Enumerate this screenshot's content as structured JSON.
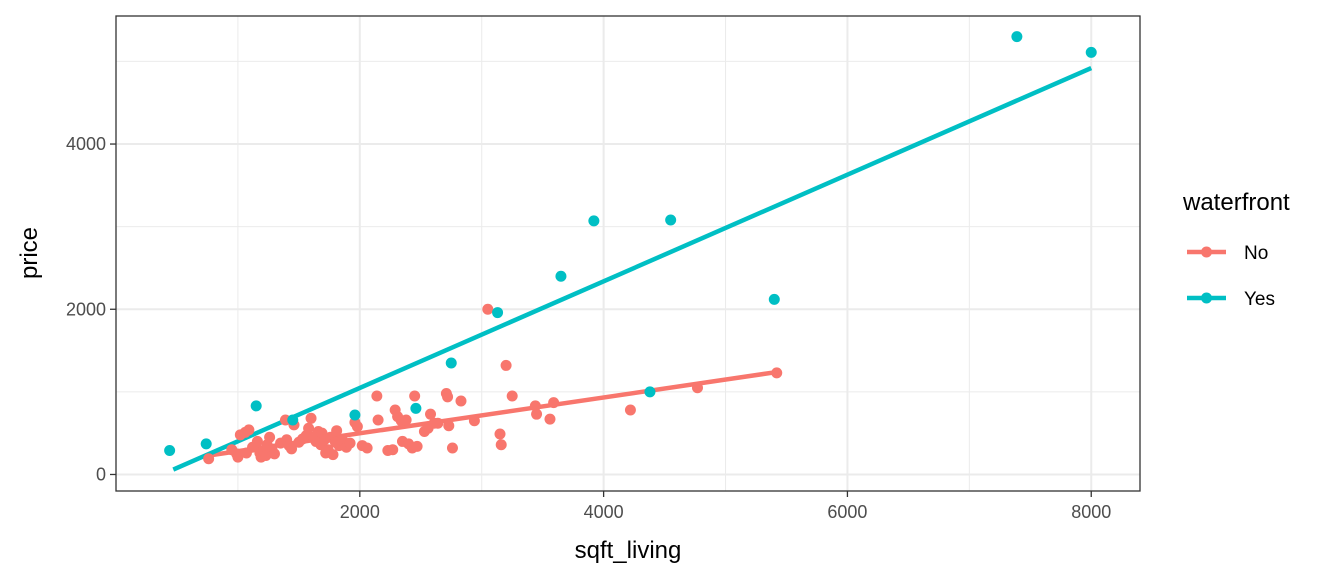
{
  "chart_data": {
    "type": "scatter",
    "xlabel": "sqft_living",
    "ylabel": "price",
    "xlim": [
      0,
      8400
    ],
    "ylim": [
      -200,
      5550
    ],
    "x_ticks": [
      2000,
      4000,
      6000,
      8000
    ],
    "y_ticks": [
      0,
      2000,
      4000
    ],
    "x_tick_labels": [
      "2000",
      "4000",
      "6000",
      "8000"
    ],
    "y_tick_labels": [
      "0",
      "2000",
      "4000"
    ],
    "grid": true,
    "legend": {
      "title": "waterfront",
      "position": "right"
    },
    "series": [
      {
        "name": "No",
        "color": "#F8766D",
        "points": [
          [
            760,
            190
          ],
          [
            950,
            300
          ],
          [
            990,
            250
          ],
          [
            1000,
            210
          ],
          [
            1020,
            480
          ],
          [
            1060,
            510
          ],
          [
            1070,
            260
          ],
          [
            1090,
            540
          ],
          [
            1120,
            330
          ],
          [
            1160,
            400
          ],
          [
            1180,
            260
          ],
          [
            1190,
            210
          ],
          [
            1210,
            290
          ],
          [
            1230,
            230
          ],
          [
            1240,
            360
          ],
          [
            1260,
            450
          ],
          [
            1280,
            300
          ],
          [
            1300,
            250
          ],
          [
            1350,
            380
          ],
          [
            1390,
            660
          ],
          [
            1400,
            420
          ],
          [
            1420,
            350
          ],
          [
            1440,
            310
          ],
          [
            1460,
            600
          ],
          [
            1500,
            390
          ],
          [
            1530,
            430
          ],
          [
            1560,
            470
          ],
          [
            1580,
            560
          ],
          [
            1600,
            680
          ],
          [
            1620,
            450
          ],
          [
            1640,
            400
          ],
          [
            1660,
            520
          ],
          [
            1680,
            360
          ],
          [
            1690,
            500
          ],
          [
            1710,
            420
          ],
          [
            1720,
            260
          ],
          [
            1740,
            300
          ],
          [
            1760,
            450
          ],
          [
            1780,
            240
          ],
          [
            1800,
            390
          ],
          [
            1810,
            530
          ],
          [
            1830,
            350
          ],
          [
            1860,
            410
          ],
          [
            1890,
            330
          ],
          [
            1920,
            380
          ],
          [
            1960,
            630
          ],
          [
            1980,
            580
          ],
          [
            2020,
            350
          ],
          [
            2060,
            320
          ],
          [
            2140,
            950
          ],
          [
            2150,
            660
          ],
          [
            2230,
            290
          ],
          [
            2270,
            300
          ],
          [
            2290,
            780
          ],
          [
            2310,
            700
          ],
          [
            2340,
            650
          ],
          [
            2350,
            400
          ],
          [
            2380,
            660
          ],
          [
            2400,
            370
          ],
          [
            2430,
            320
          ],
          [
            2450,
            950
          ],
          [
            2470,
            340
          ],
          [
            2530,
            520
          ],
          [
            2560,
            560
          ],
          [
            2580,
            730
          ],
          [
            2610,
            620
          ],
          [
            2640,
            620
          ],
          [
            2710,
            980
          ],
          [
            2720,
            940
          ],
          [
            2730,
            590
          ],
          [
            2760,
            320
          ],
          [
            2830,
            890
          ],
          [
            2940,
            650
          ],
          [
            3050,
            2000
          ],
          [
            3150,
            490
          ],
          [
            3160,
            360
          ],
          [
            3200,
            1320
          ],
          [
            3250,
            950
          ],
          [
            3440,
            830
          ],
          [
            3450,
            730
          ],
          [
            3560,
            670
          ],
          [
            3590,
            870
          ],
          [
            4220,
            780
          ],
          [
            4770,
            1050
          ],
          [
            5420,
            1230
          ]
        ],
        "fit": [
          [
            760,
            230
          ],
          [
            5420,
            1240
          ]
        ]
      },
      {
        "name": "Yes",
        "color": "#00BFC4",
        "points": [
          [
            440,
            290
          ],
          [
            740,
            370
          ],
          [
            1150,
            830
          ],
          [
            1450,
            660
          ],
          [
            1960,
            720
          ],
          [
            2460,
            800
          ],
          [
            2750,
            1350
          ],
          [
            3130,
            1960
          ],
          [
            3650,
            2400
          ],
          [
            3920,
            3070
          ],
          [
            4380,
            1000
          ],
          [
            4550,
            3080
          ],
          [
            5400,
            2120
          ],
          [
            7390,
            5300
          ],
          [
            8000,
            5110
          ]
        ],
        "fit": [
          [
            470,
            60
          ],
          [
            8000,
            4920
          ]
        ]
      }
    ]
  }
}
